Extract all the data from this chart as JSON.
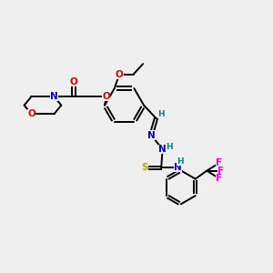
{
  "bg_color": "#efefef",
  "atom_colors": {
    "C": "#000000",
    "N": "#0000cc",
    "O": "#dd0000",
    "S": "#aaaa00",
    "F": "#ee00ee",
    "H": "#008888"
  },
  "bond_color": "#000000",
  "figsize": [
    3.0,
    3.0
  ],
  "dpi": 100,
  "lw": 1.4,
  "fs": 7.5
}
